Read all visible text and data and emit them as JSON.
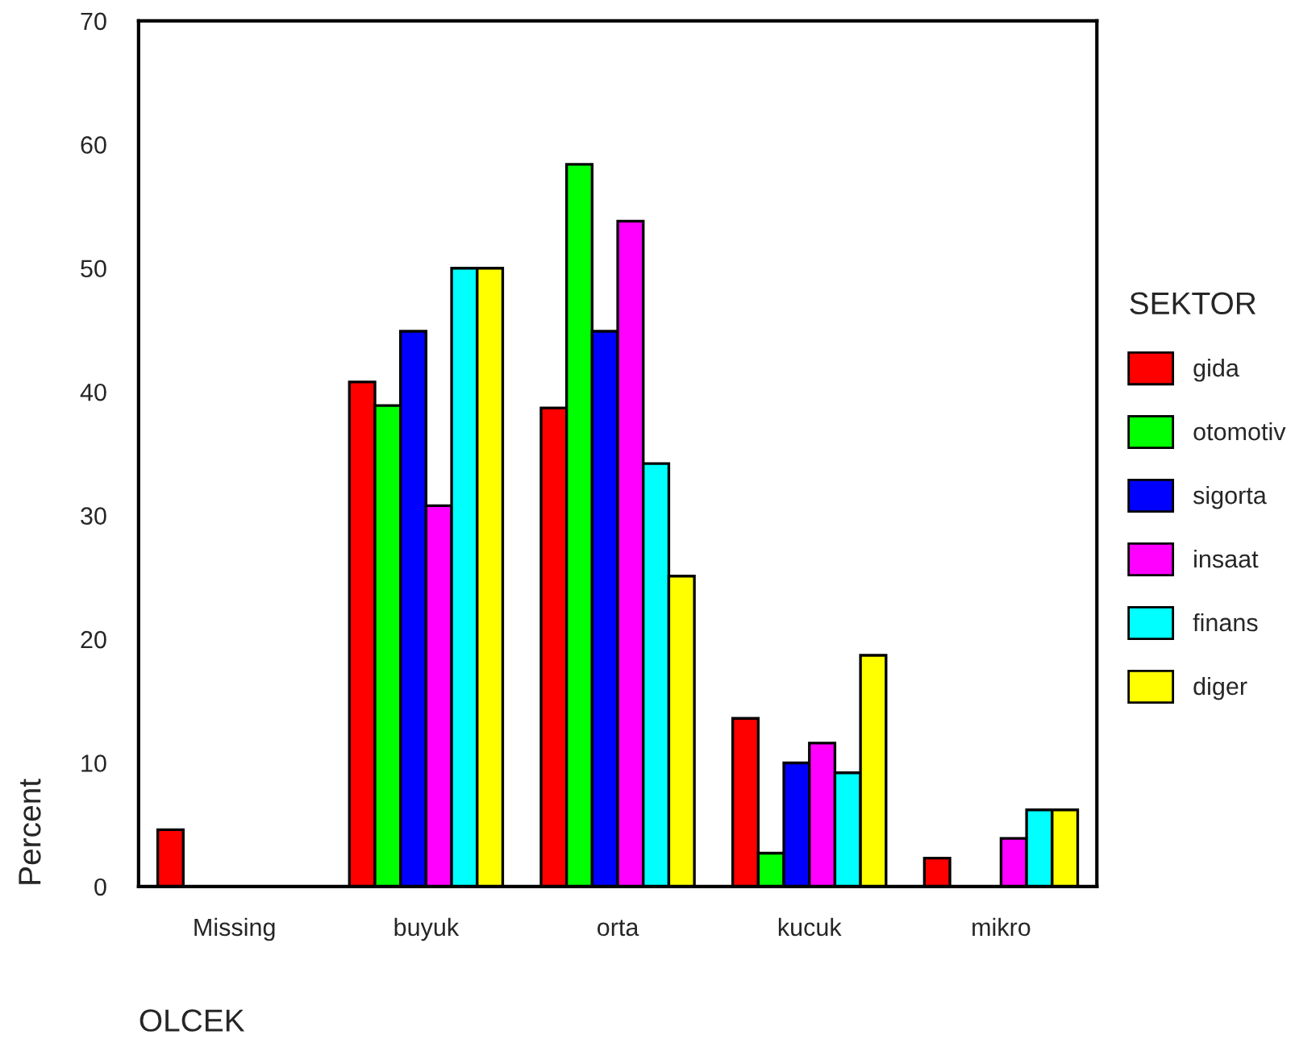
{
  "chart_data": {
    "type": "bar",
    "xlabel": "OLCEK",
    "ylabel": "Percent",
    "legend_title": "SEKTOR",
    "categories": [
      "Missing",
      "buyuk",
      "orta",
      "kucuk",
      "mikro"
    ],
    "series": [
      {
        "name": "gida",
        "color": "#ff0000",
        "values": [
          4.6,
          40.8,
          38.7,
          13.6,
          2.3
        ]
      },
      {
        "name": "otomotiv",
        "color": "#00ff00",
        "values": [
          null,
          38.9,
          58.4,
          2.7,
          null
        ]
      },
      {
        "name": "sigorta",
        "color": "#0000ff",
        "values": [
          null,
          44.9,
          44.9,
          10.0,
          null
        ]
      },
      {
        "name": "insaat",
        "color": "#ff00ff",
        "values": [
          null,
          30.8,
          53.8,
          11.6,
          3.9
        ]
      },
      {
        "name": "finans",
        "color": "#00ffff",
        "values": [
          null,
          50.0,
          34.2,
          9.2,
          6.2
        ]
      },
      {
        "name": "diger",
        "color": "#ffff00",
        "values": [
          null,
          50.0,
          25.1,
          18.7,
          6.2
        ]
      }
    ],
    "ylim": [
      0,
      70
    ],
    "yticks": [
      0,
      10,
      20,
      30,
      40,
      50,
      60,
      70
    ],
    "grid": false,
    "legend": "right"
  }
}
